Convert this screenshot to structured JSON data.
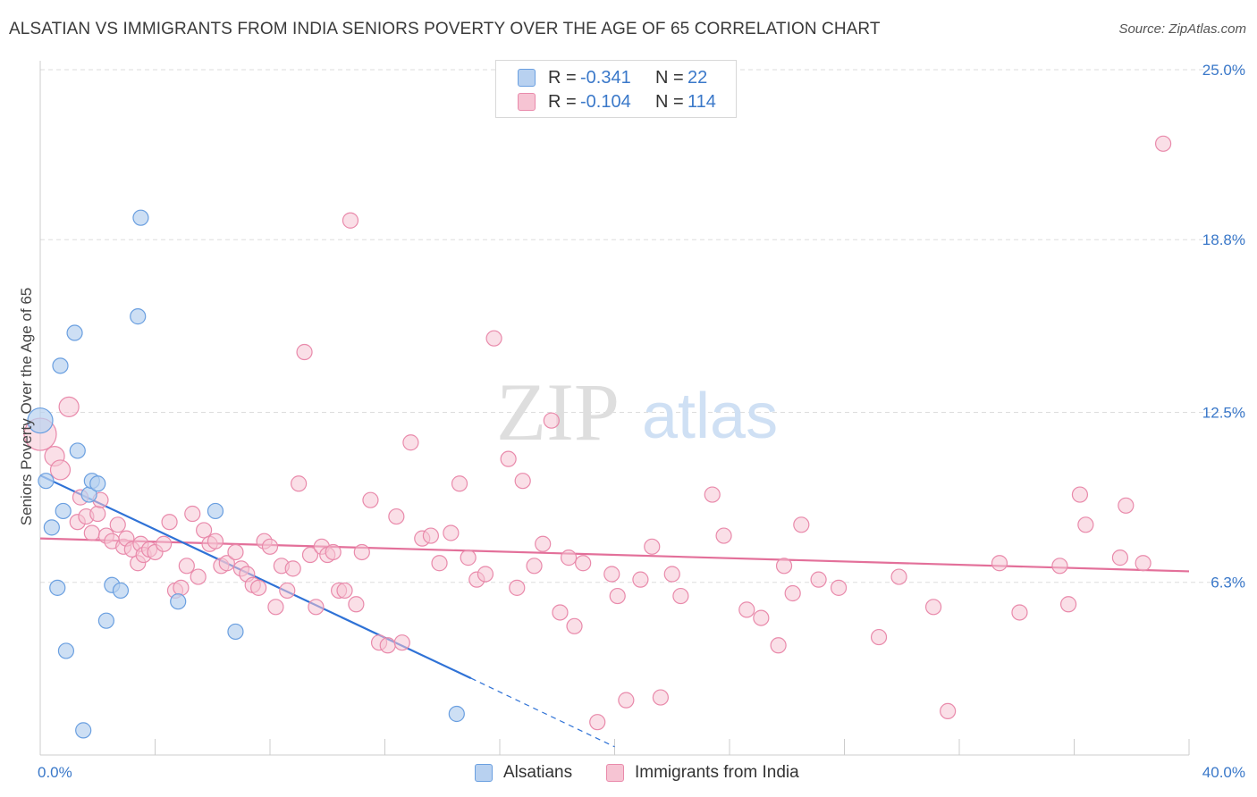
{
  "title": "ALSATIAN VS IMMIGRANTS FROM INDIA SENIORS POVERTY OVER THE AGE OF 65 CORRELATION CHART",
  "source": "Source: ZipAtlas.com",
  "watermark": {
    "zip": "ZIP",
    "atlas": "atlas"
  },
  "legend": {
    "r_label": "R =",
    "n_label": "N =",
    "alsatians": {
      "r": "-0.341",
      "n": "22"
    },
    "india": {
      "r": "-0.104",
      "n": "114"
    }
  },
  "colors": {
    "blue_fill": "#b8d1f0",
    "blue_stroke": "#6a9fe0",
    "blue_line": "#2f72d6",
    "pink_fill": "#f6c4d3",
    "pink_stroke": "#e98aab",
    "pink_line": "#e3709a",
    "tick_label": "#3a78c9",
    "grid": "#dddddd"
  },
  "chart_data": {
    "type": "scatter",
    "ylabel": "Seniors Poverty Over the Age of 65",
    "xlim": [
      0,
      40
    ],
    "ylim": [
      0,
      26
    ],
    "x_tick_labels": [
      {
        "value": 0,
        "label": "0.0%"
      },
      {
        "value": 40,
        "label": "40.0%"
      }
    ],
    "y_tick_labels": [
      {
        "value": 6.3,
        "label": "6.3%"
      },
      {
        "value": 12.5,
        "label": "12.5%"
      },
      {
        "value": 18.8,
        "label": "18.8%"
      },
      {
        "value": 25.0,
        "label": "25.0%"
      }
    ],
    "series": [
      {
        "name": "Alsatians",
        "points": [
          [
            0.0,
            12.2
          ],
          [
            0.2,
            10.0
          ],
          [
            0.4,
            8.3
          ],
          [
            0.6,
            6.1
          ],
          [
            0.7,
            14.2
          ],
          [
            0.8,
            8.9
          ],
          [
            0.9,
            3.8
          ],
          [
            1.2,
            15.4
          ],
          [
            1.3,
            11.1
          ],
          [
            1.5,
            0.9
          ],
          [
            1.7,
            9.5
          ],
          [
            1.8,
            10.0
          ],
          [
            2.0,
            9.9
          ],
          [
            2.3,
            4.9
          ],
          [
            2.5,
            6.2
          ],
          [
            2.8,
            6.0
          ],
          [
            3.4,
            16.0
          ],
          [
            3.5,
            19.6
          ],
          [
            4.8,
            5.6
          ],
          [
            6.1,
            8.9
          ],
          [
            6.8,
            4.5
          ],
          [
            14.5,
            1.5
          ]
        ],
        "trend": {
          "x0": 0.0,
          "y0": 10.2,
          "x1": 15.0,
          "y1": 2.8,
          "dash_x1": 20.0,
          "dash_y1": 0.3
        }
      },
      {
        "name": "Immigrants from India",
        "points": [
          [
            0.0,
            11.7
          ],
          [
            0.5,
            10.9
          ],
          [
            0.7,
            10.4
          ],
          [
            1.0,
            12.7
          ],
          [
            1.3,
            8.5
          ],
          [
            1.4,
            9.4
          ],
          [
            1.6,
            8.7
          ],
          [
            1.8,
            8.1
          ],
          [
            2.0,
            8.8
          ],
          [
            2.1,
            9.3
          ],
          [
            2.3,
            8.0
          ],
          [
            2.5,
            7.8
          ],
          [
            2.7,
            8.4
          ],
          [
            2.9,
            7.6
          ],
          [
            3.0,
            7.9
          ],
          [
            3.2,
            7.5
          ],
          [
            3.4,
            7.0
          ],
          [
            3.5,
            7.7
          ],
          [
            3.6,
            7.3
          ],
          [
            3.8,
            7.5
          ],
          [
            4.0,
            7.4
          ],
          [
            4.3,
            7.7
          ],
          [
            4.5,
            8.5
          ],
          [
            4.7,
            6.0
          ],
          [
            4.9,
            6.1
          ],
          [
            5.1,
            6.9
          ],
          [
            5.3,
            8.8
          ],
          [
            5.5,
            6.5
          ],
          [
            5.7,
            8.2
          ],
          [
            5.9,
            7.7
          ],
          [
            6.1,
            7.8
          ],
          [
            6.3,
            6.9
          ],
          [
            6.5,
            7.0
          ],
          [
            6.8,
            7.4
          ],
          [
            7.0,
            6.8
          ],
          [
            7.2,
            6.6
          ],
          [
            7.4,
            6.2
          ],
          [
            7.6,
            6.1
          ],
          [
            7.8,
            7.8
          ],
          [
            8.0,
            7.6
          ],
          [
            8.2,
            5.4
          ],
          [
            8.4,
            6.9
          ],
          [
            8.6,
            6.0
          ],
          [
            8.8,
            6.8
          ],
          [
            9.0,
            9.9
          ],
          [
            9.2,
            14.7
          ],
          [
            9.4,
            7.3
          ],
          [
            9.6,
            5.4
          ],
          [
            9.8,
            7.6
          ],
          [
            10.0,
            7.3
          ],
          [
            10.2,
            7.4
          ],
          [
            10.4,
            6.0
          ],
          [
            10.6,
            6.0
          ],
          [
            10.8,
            19.5
          ],
          [
            11.0,
            5.5
          ],
          [
            11.2,
            7.4
          ],
          [
            11.5,
            9.3
          ],
          [
            11.8,
            4.1
          ],
          [
            12.1,
            4.0
          ],
          [
            12.4,
            8.7
          ],
          [
            12.6,
            4.1
          ],
          [
            12.9,
            11.4
          ],
          [
            13.3,
            7.9
          ],
          [
            13.6,
            8.0
          ],
          [
            13.9,
            7.0
          ],
          [
            14.3,
            8.1
          ],
          [
            14.6,
            9.9
          ],
          [
            14.9,
            7.2
          ],
          [
            15.2,
            6.4
          ],
          [
            15.5,
            6.6
          ],
          [
            15.8,
            15.2
          ],
          [
            16.3,
            10.8
          ],
          [
            16.6,
            6.1
          ],
          [
            16.8,
            10.0
          ],
          [
            17.2,
            6.9
          ],
          [
            17.5,
            7.7
          ],
          [
            17.8,
            12.2
          ],
          [
            18.1,
            5.2
          ],
          [
            18.4,
            7.2
          ],
          [
            18.6,
            4.7
          ],
          [
            18.9,
            7.0
          ],
          [
            19.4,
            1.2
          ],
          [
            19.9,
            6.6
          ],
          [
            20.1,
            5.8
          ],
          [
            20.4,
            2.0
          ],
          [
            20.9,
            6.4
          ],
          [
            21.3,
            7.6
          ],
          [
            21.6,
            2.1
          ],
          [
            22.0,
            6.6
          ],
          [
            22.3,
            5.8
          ],
          [
            23.4,
            9.5
          ],
          [
            23.8,
            8.0
          ],
          [
            24.6,
            5.3
          ],
          [
            25.1,
            5.0
          ],
          [
            25.7,
            4.0
          ],
          [
            25.9,
            6.9
          ],
          [
            26.2,
            5.9
          ],
          [
            26.5,
            8.4
          ],
          [
            27.1,
            6.4
          ],
          [
            27.8,
            6.1
          ],
          [
            29.2,
            4.3
          ],
          [
            29.9,
            6.5
          ],
          [
            31.1,
            5.4
          ],
          [
            31.6,
            1.6
          ],
          [
            33.4,
            7.0
          ],
          [
            34.1,
            5.2
          ],
          [
            35.5,
            6.9
          ],
          [
            35.8,
            5.5
          ],
          [
            36.2,
            9.5
          ],
          [
            36.4,
            8.4
          ],
          [
            37.6,
            7.2
          ],
          [
            37.8,
            9.1
          ],
          [
            38.4,
            7.0
          ],
          [
            39.1,
            22.3
          ]
        ],
        "trend": {
          "x0": 0.0,
          "y0": 7.9,
          "x1": 40.0,
          "y1": 6.7
        }
      }
    ]
  },
  "bottom_legend": {
    "alsatians_label": "Alsatians",
    "india_label": "Immigrants from India"
  }
}
